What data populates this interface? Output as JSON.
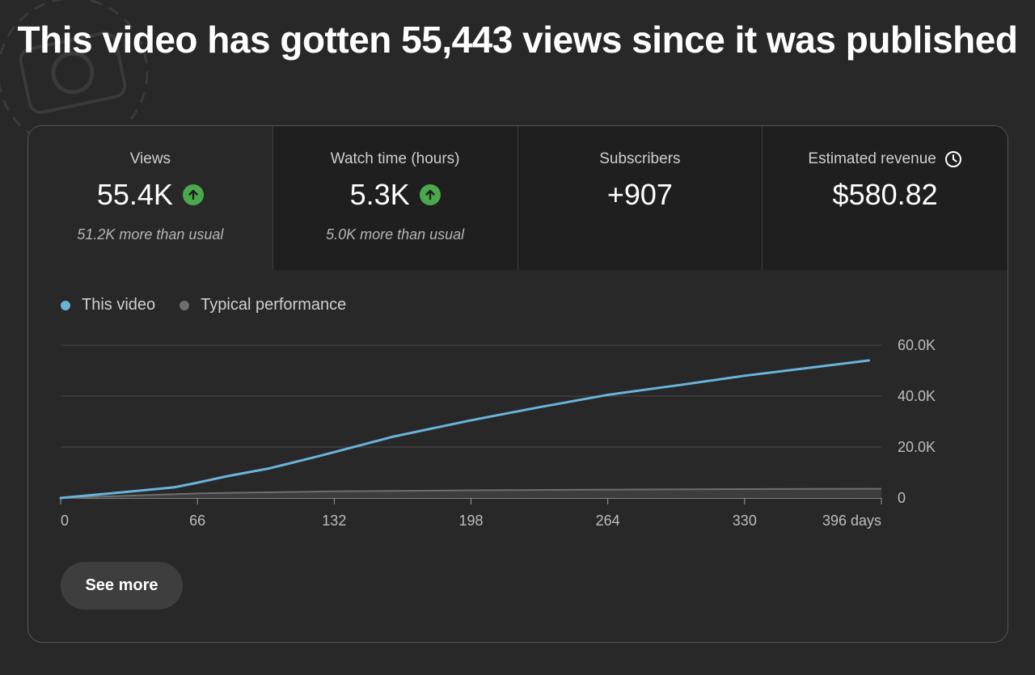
{
  "headline": "This video has gotten 55,443 views since it was published",
  "metrics": [
    {
      "title": "Views",
      "value": "55.4K",
      "sub": "51.2K more than usual",
      "icon": "arrow-up-circle-icon"
    },
    {
      "title": "Watch time (hours)",
      "value": "5.3K",
      "sub": "5.0K more than usual",
      "icon": "arrow-up-circle-icon"
    },
    {
      "title": "Subscribers",
      "value": "+907",
      "sub": ""
    },
    {
      "title": "Estimated revenue",
      "value": "$580.82",
      "sub": "",
      "icon": "clock-icon"
    }
  ],
  "legend": {
    "this_video": "This video",
    "typical": "Typical performance"
  },
  "colors": {
    "this_video": "#6ab4dc",
    "typical": "#6e6e6e",
    "up": "#4aa84d"
  },
  "see_more": "See more",
  "chart_data": {
    "type": "line",
    "xlabel": "",
    "ylabel": "",
    "xlim": [
      0,
      396
    ],
    "ylim": [
      0,
      60000
    ],
    "x_ticks": [
      "0",
      "66",
      "132",
      "198",
      "264",
      "330",
      "396 days"
    ],
    "y_ticks": [
      "60.0K",
      "40.0K",
      "20.0K",
      "0"
    ],
    "series": [
      {
        "name": "This video",
        "color": "#6ab4dc",
        "x": [
          0,
          20,
          40,
          55,
          66,
          80,
          100,
          120,
          132,
          160,
          198,
          230,
          264,
          300,
          330,
          360,
          390
        ],
        "y": [
          0,
          1500,
          3000,
          4200,
          6000,
          8500,
          11500,
          15500,
          18000,
          24000,
          30500,
          35500,
          40500,
          44500,
          48000,
          51000,
          54000
        ]
      },
      {
        "name": "Typical performance",
        "color": "#6e6e6e",
        "x": [
          0,
          66,
          132,
          198,
          264,
          330,
          396
        ],
        "y": [
          0,
          1800,
          2600,
          3000,
          3300,
          3500,
          3600
        ]
      }
    ]
  }
}
